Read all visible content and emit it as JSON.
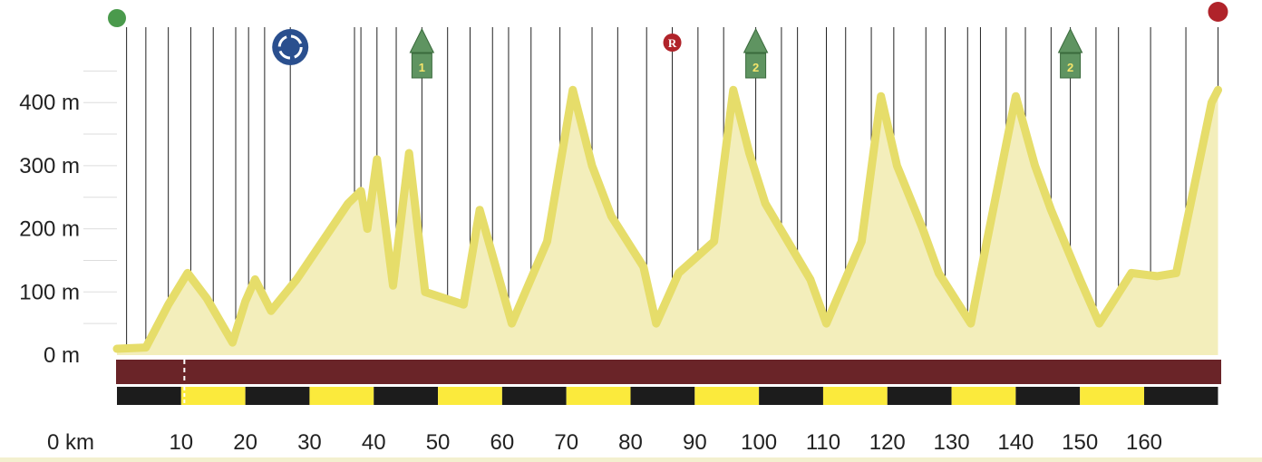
{
  "chart_data": {
    "type": "area",
    "xlim": [
      0,
      172
    ],
    "ylim": [
      0,
      500
    ],
    "y_ticks": [
      {
        "value": 0,
        "label": "0 m"
      },
      {
        "value": 100,
        "label": "100 m"
      },
      {
        "value": 200,
        "label": "200 m"
      },
      {
        "value": 300,
        "label": "300 m"
      },
      {
        "value": 400,
        "label": "400 m"
      }
    ],
    "x_unit_label": "0  km",
    "x_ticks": [
      {
        "value": 10,
        "label": "10"
      },
      {
        "value": 20,
        "label": "20"
      },
      {
        "value": 30,
        "label": "30"
      },
      {
        "value": 40,
        "label": "40"
      },
      {
        "value": 50,
        "label": "50"
      },
      {
        "value": 60,
        "label": "60"
      },
      {
        "value": 70,
        "label": "70"
      },
      {
        "value": 80,
        "label": "80"
      },
      {
        "value": 90,
        "label": "90"
      },
      {
        "value": 100,
        "label": "100"
      },
      {
        "value": 110,
        "label": "110"
      },
      {
        "value": 120,
        "label": "120"
      },
      {
        "value": 130,
        "label": "130"
      },
      {
        "value": 140,
        "label": "140"
      },
      {
        "value": 150,
        "label": "150"
      },
      {
        "value": 160,
        "label": "160"
      }
    ],
    "profile": {
      "x": [
        0,
        4.5,
        8,
        11,
        14,
        18,
        20,
        21.5,
        24,
        28,
        32,
        36,
        38,
        39,
        40.5,
        43,
        45.5,
        48,
        54,
        56.5,
        59,
        61.5,
        67,
        71,
        74,
        77,
        82,
        84,
        87.5,
        93,
        96,
        98.5,
        101,
        108,
        110.5,
        116,
        119,
        121.5,
        125.5,
        128,
        133,
        135.5,
        140,
        143,
        145.5,
        150,
        153,
        158,
        162,
        165,
        170.5,
        171.5
      ],
      "y": [
        10,
        12,
        80,
        130,
        90,
        20,
        85,
        120,
        70,
        120,
        180,
        240,
        260,
        200,
        310,
        110,
        320,
        100,
        80,
        230,
        140,
        50,
        180,
        420,
        300,
        220,
        140,
        50,
        130,
        180,
        420,
        320,
        240,
        120,
        50,
        180,
        410,
        300,
        200,
        130,
        50,
        180,
        410,
        300,
        230,
        120,
        50,
        130,
        125,
        130,
        400,
        420
      ]
    },
    "grid_lines_y": [
      50,
      100,
      150,
      200,
      250,
      300,
      350,
      400,
      450
    ],
    "markers": {
      "start": {
        "x": 0,
        "color": "#4a9a4c"
      },
      "finish": {
        "x": 171.5,
        "color": "#b0232a"
      },
      "feed_zone": {
        "x": 27,
        "icon": "feed-zone-icon",
        "color": "#2a4f8e"
      },
      "sprint": {
        "x": 86.5,
        "label": "R",
        "icon": "sprint-icon",
        "color": "#b0232a"
      },
      "climbs": [
        {
          "x": 47.5,
          "category": "1"
        },
        {
          "x": 99.5,
          "category": "2"
        },
        {
          "x": 148.5,
          "category": "2"
        }
      ]
    },
    "vertical_line_x": [
      1.5,
      4.5,
      8,
      11.5,
      15,
      18.5,
      20.5,
      23,
      27,
      37,
      38,
      40.5,
      43.5,
      47.5,
      51.5,
      55,
      58.5,
      61,
      64.5,
      69,
      74,
      78,
      82.5,
      86.5,
      90.5,
      94.5,
      99.5,
      103.5,
      106,
      110.5,
      113.5,
      117.5,
      121,
      126,
      129,
      132.5,
      134.5,
      138.5,
      141.5,
      145.5,
      148.5,
      152.5,
      156,
      161,
      166.5,
      171.5
    ],
    "km_segments": [
      {
        "to": 10,
        "color": "#1c1c1c"
      },
      {
        "to": 20,
        "color": "#fbea3c"
      },
      {
        "to": 30,
        "color": "#1c1c1c"
      },
      {
        "to": 40,
        "color": "#fbea3c"
      },
      {
        "to": 50,
        "color": "#1c1c1c"
      },
      {
        "to": 60,
        "color": "#fbea3c"
      },
      {
        "to": 70,
        "color": "#1c1c1c"
      },
      {
        "to": 80,
        "color": "#fbea3c"
      },
      {
        "to": 90,
        "color": "#1c1c1c"
      },
      {
        "to": 100,
        "color": "#fbea3c"
      },
      {
        "to": 110,
        "color": "#1c1c1c"
      },
      {
        "to": 120,
        "color": "#fbea3c"
      },
      {
        "to": 130,
        "color": "#1c1c1c"
      },
      {
        "to": 140,
        "color": "#fbea3c"
      },
      {
        "to": 150,
        "color": "#1c1c1c"
      },
      {
        "to": 160,
        "color": "#fbea3c"
      },
      {
        "to": 171.5,
        "color": "#1c1c1c"
      }
    ],
    "road_band_color": "#6a2428",
    "road_band_marker_x": 10.5,
    "colors": {
      "fill": "#f3eebb",
      "line": "#e6dd6a",
      "grid": "#dddddd",
      "vertical": "#222222",
      "climb_marker": "#5f9461"
    },
    "grid": true
  }
}
